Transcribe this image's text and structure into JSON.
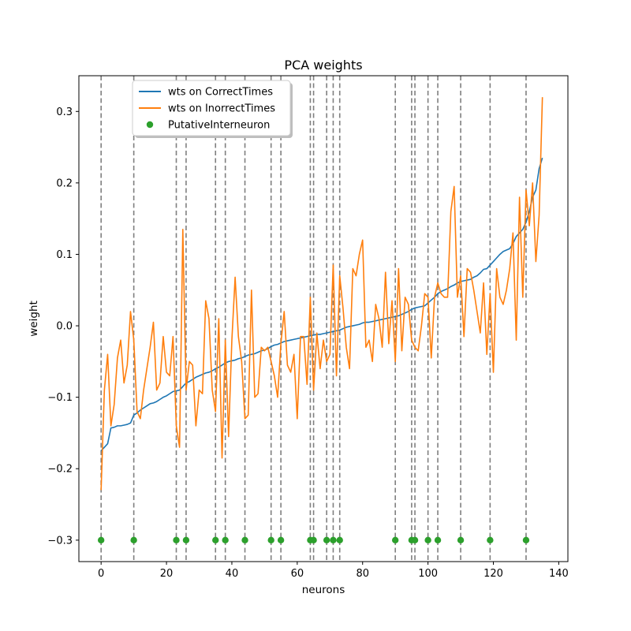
{
  "chart_data": {
    "type": "line",
    "title": "PCA weights",
    "xlabel": "neurons",
    "ylabel": "weight",
    "xlim": [
      -6.8,
      142.8
    ],
    "ylim": [
      -0.33,
      0.35
    ],
    "xticks": [
      0,
      20,
      40,
      60,
      80,
      100,
      120,
      140
    ],
    "xtick_labels": [
      "0",
      "20",
      "40",
      "60",
      "80",
      "100",
      "120",
      "140"
    ],
    "yticks": [
      -0.3,
      -0.2,
      -0.1,
      0.0,
      0.1,
      0.2,
      0.3
    ],
    "ytick_labels": [
      "−0.3",
      "−0.2",
      "−0.1",
      "0.0",
      "0.1",
      "0.2",
      "0.3"
    ],
    "grid": false,
    "legend_position": "upper-left",
    "series": [
      {
        "name": "wts on CorrectTimes",
        "kind": "line",
        "color": "#1f77b4",
        "x": [
          0,
          1,
          2,
          3,
          4,
          5,
          6,
          7,
          8,
          9,
          10,
          11,
          12,
          13,
          14,
          15,
          16,
          17,
          18,
          19,
          20,
          21,
          22,
          23,
          24,
          25,
          26,
          27,
          28,
          29,
          30,
          31,
          32,
          33,
          34,
          35,
          36,
          37,
          38,
          39,
          40,
          41,
          42,
          43,
          44,
          45,
          46,
          47,
          48,
          49,
          50,
          51,
          52,
          53,
          54,
          55,
          56,
          57,
          58,
          59,
          60,
          61,
          62,
          63,
          64,
          65,
          66,
          67,
          68,
          69,
          70,
          71,
          72,
          73,
          74,
          75,
          76,
          77,
          78,
          79,
          80,
          81,
          82,
          83,
          84,
          85,
          86,
          87,
          88,
          89,
          90,
          91,
          92,
          93,
          94,
          95,
          96,
          97,
          98,
          99,
          100,
          101,
          102,
          103,
          104,
          105,
          106,
          107,
          108,
          109,
          110,
          111,
          112,
          113,
          114,
          115,
          116,
          117,
          118,
          119,
          120,
          121,
          122,
          123,
          124,
          125,
          126,
          127,
          128,
          129,
          130,
          131,
          132,
          133,
          134,
          135
        ],
        "y": [
          -0.175,
          -0.17,
          -0.165,
          -0.143,
          -0.142,
          -0.14,
          -0.14,
          -0.139,
          -0.138,
          -0.136,
          -0.125,
          -0.122,
          -0.118,
          -0.115,
          -0.112,
          -0.109,
          -0.108,
          -0.106,
          -0.103,
          -0.1,
          -0.098,
          -0.095,
          -0.092,
          -0.091,
          -0.09,
          -0.085,
          -0.08,
          -0.078,
          -0.075,
          -0.072,
          -0.07,
          -0.068,
          -0.066,
          -0.065,
          -0.063,
          -0.06,
          -0.058,
          -0.055,
          -0.052,
          -0.05,
          -0.049,
          -0.048,
          -0.046,
          -0.045,
          -0.043,
          -0.041,
          -0.04,
          -0.039,
          -0.037,
          -0.035,
          -0.034,
          -0.032,
          -0.029,
          -0.027,
          -0.026,
          -0.024,
          -0.022,
          -0.021,
          -0.02,
          -0.019,
          -0.018,
          -0.017,
          -0.016,
          -0.015,
          -0.014,
          -0.013,
          -0.012,
          -0.012,
          -0.011,
          -0.01,
          -0.009,
          -0.008,
          -0.007,
          -0.006,
          -0.004,
          -0.002,
          -0.001,
          0.0,
          0.001,
          0.002,
          0.004,
          0.005,
          0.005,
          0.006,
          0.007,
          0.008,
          0.009,
          0.01,
          0.011,
          0.012,
          0.013,
          0.014,
          0.016,
          0.018,
          0.02,
          0.023,
          0.025,
          0.026,
          0.027,
          0.028,
          0.032,
          0.036,
          0.04,
          0.045,
          0.048,
          0.05,
          0.052,
          0.055,
          0.057,
          0.06,
          0.062,
          0.063,
          0.064,
          0.065,
          0.068,
          0.07,
          0.074,
          0.079,
          0.08,
          0.085,
          0.09,
          0.095,
          0.1,
          0.104,
          0.106,
          0.108,
          0.115,
          0.125,
          0.13,
          0.135,
          0.145,
          0.16,
          0.18,
          0.19,
          0.22,
          0.235
        ]
      },
      {
        "name": "wts on InorrectTimes",
        "kind": "line",
        "color": "#ff7f0e",
        "x": [
          0,
          1,
          2,
          3,
          4,
          5,
          6,
          7,
          8,
          9,
          10,
          11,
          12,
          13,
          14,
          15,
          16,
          17,
          18,
          19,
          20,
          21,
          22,
          23,
          24,
          25,
          26,
          27,
          28,
          29,
          30,
          31,
          32,
          33,
          34,
          35,
          36,
          37,
          38,
          39,
          40,
          41,
          42,
          43,
          44,
          45,
          46,
          47,
          48,
          49,
          50,
          51,
          52,
          53,
          54,
          55,
          56,
          57,
          58,
          59,
          60,
          61,
          62,
          63,
          64,
          65,
          66,
          67,
          68,
          69,
          70,
          71,
          72,
          73,
          74,
          75,
          76,
          77,
          78,
          79,
          80,
          81,
          82,
          83,
          84,
          85,
          86,
          87,
          88,
          89,
          90,
          91,
          92,
          93,
          94,
          95,
          96,
          97,
          98,
          99,
          100,
          101,
          102,
          103,
          104,
          105,
          106,
          107,
          108,
          109,
          110,
          111,
          112,
          113,
          114,
          115,
          116,
          117,
          118,
          119,
          120,
          121,
          122,
          123,
          124,
          125,
          126,
          127,
          128,
          129,
          130,
          131,
          132,
          133,
          134,
          135
        ],
        "y": [
          -0.23,
          -0.09,
          -0.04,
          -0.14,
          -0.11,
          -0.045,
          -0.02,
          -0.08,
          -0.055,
          0.02,
          -0.02,
          -0.12,
          -0.13,
          -0.09,
          -0.06,
          -0.03,
          0.005,
          -0.09,
          -0.08,
          -0.015,
          -0.065,
          -0.07,
          -0.015,
          -0.14,
          -0.17,
          0.135,
          -0.09,
          -0.05,
          -0.055,
          -0.14,
          -0.09,
          -0.095,
          0.035,
          0.01,
          -0.09,
          -0.12,
          0.01,
          -0.185,
          -0.02,
          -0.155,
          -0.02,
          0.068,
          -0.015,
          -0.05,
          -0.13,
          -0.125,
          0.05,
          -0.1,
          -0.095,
          -0.03,
          -0.035,
          -0.03,
          -0.05,
          -0.07,
          -0.1,
          -0.025,
          0.02,
          -0.055,
          -0.065,
          -0.04,
          -0.13,
          -0.015,
          -0.015,
          -0.082,
          0.04,
          -0.09,
          -0.01,
          -0.06,
          -0.02,
          -0.05,
          -0.04,
          0.085,
          -0.07,
          0.07,
          0.025,
          -0.03,
          -0.06,
          0.08,
          0.07,
          0.1,
          0.12,
          -0.03,
          -0.02,
          -0.05,
          0.03,
          0.01,
          -0.03,
          0.075,
          -0.025,
          0.035,
          -0.05,
          0.08,
          -0.035,
          0.04,
          0.03,
          -0.02,
          -0.03,
          -0.035,
          0.0,
          0.045,
          0.04,
          -0.045,
          0.04,
          0.06,
          0.045,
          0.04,
          0.04,
          0.16,
          0.195,
          0.04,
          0.07,
          -0.015,
          0.08,
          0.075,
          0.05,
          0.02,
          -0.01,
          0.06,
          -0.04,
          0.045,
          -0.065,
          0.08,
          0.04,
          0.03,
          0.05,
          0.08,
          0.13,
          -0.02,
          0.18,
          0.04,
          0.19,
          0.14,
          0.2,
          0.09,
          0.155,
          0.32
        ]
      },
      {
        "name": "PutativeInterneuron",
        "kind": "scatter",
        "color": "#2ca02c",
        "y_value": -0.3,
        "x": [
          0,
          10,
          23,
          26,
          35,
          38,
          44,
          52,
          55,
          64,
          65,
          69,
          71,
          73,
          90,
          95,
          96,
          100,
          103,
          110,
          119,
          130
        ]
      }
    ],
    "vlines": {
      "x": [
        0,
        10,
        23,
        26,
        35,
        38,
        44,
        52,
        55,
        64,
        65,
        69,
        71,
        73,
        90,
        95,
        96,
        100,
        103,
        110,
        119,
        130
      ],
      "style": "dashed",
      "color": "#7f7f7f"
    }
  }
}
